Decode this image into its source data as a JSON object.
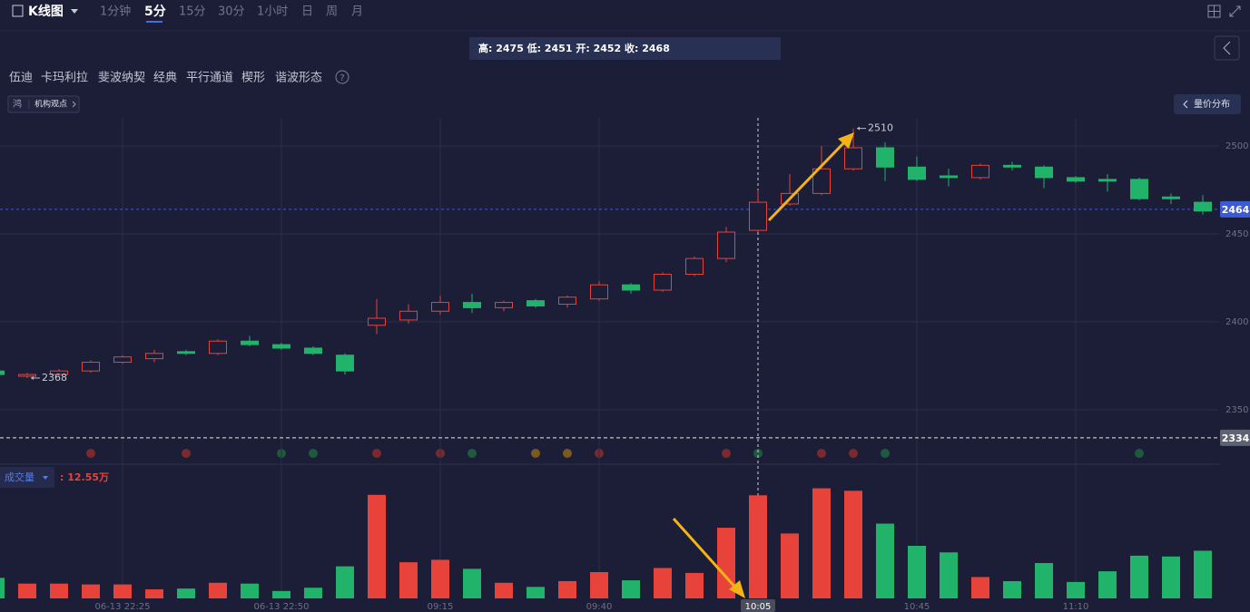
{
  "toolbar": {
    "chart_type": "K线图",
    "periods": [
      "1分钟",
      "5分",
      "15分",
      "30分",
      "1小时",
      "日",
      "周",
      "月"
    ],
    "active_period": 1
  },
  "tools": [
    "伍迪",
    "卡玛利拉",
    "斐波纳契",
    "经典",
    "平行通道",
    "楔形",
    "谐波形态"
  ],
  "help": "?",
  "badge": {
    "icon": "鸿",
    "label": "机构观点"
  },
  "side_button": "量价分布",
  "chart_data": {
    "type": "candlestick",
    "tooltip": "高: 2475 低: 2451 开: 2452 收: 2468",
    "categories": [
      null,
      null,
      null,
      null,
      "06-13 22:25",
      null,
      null,
      null,
      null,
      "06-13 22:50",
      null,
      null,
      null,
      null,
      "09:15",
      null,
      null,
      null,
      null,
      "09:40",
      null,
      null,
      null,
      null,
      "10:05",
      null,
      null,
      null,
      null,
      "10:45",
      null,
      null,
      null,
      null,
      "11:10",
      null,
      null,
      null,
      null
    ],
    "open": [
      2372,
      2369,
      2370,
      2372,
      2377,
      2379,
      2383,
      2382,
      2389,
      2387,
      2385,
      2381,
      2398,
      2401,
      2406,
      2411,
      2408,
      2412,
      2410,
      2413,
      2421,
      2418,
      2427,
      2436,
      2452,
      2467,
      2473,
      2487,
      2499,
      2488,
      2483,
      2482,
      2489,
      2488,
      2482,
      2481,
      2481,
      2471,
      2468
    ],
    "high": [
      2373,
      2371,
      2373,
      2378,
      2381,
      2384,
      2384,
      2390,
      2392,
      2388,
      2386,
      2382,
      2413,
      2410,
      2415,
      2416,
      2412,
      2413,
      2415,
      2423,
      2422,
      2428,
      2437,
      2454,
      2475,
      2484,
      2500,
      2510,
      2502,
      2494,
      2487,
      2490,
      2491,
      2489,
      2483,
      2484,
      2482,
      2473,
      2472
    ],
    "low": [
      2369,
      2368,
      2369,
      2371,
      2376,
      2377,
      2381,
      2381,
      2386,
      2384,
      2381,
      2370,
      2393,
      2399,
      2404,
      2405,
      2406,
      2408,
      2408,
      2412,
      2416,
      2417,
      2426,
      2434,
      2451,
      2466,
      2472,
      2486,
      2480,
      2480,
      2477,
      2481,
      2486,
      2476,
      2479,
      2474,
      2469,
      2467,
      2461
    ],
    "close": [
      2370,
      2370,
      2372,
      2377,
      2380,
      2382,
      2382,
      2389,
      2387,
      2385,
      2382,
      2372,
      2402,
      2406,
      2411,
      2408,
      2411,
      2409,
      2414,
      2421,
      2418,
      2427,
      2436,
      2451,
      2468,
      2473,
      2487,
      2499,
      2488,
      2481,
      2482,
      2489,
      2488,
      2482,
      2480,
      2480,
      2470,
      2470,
      2463
    ],
    "up_color": "#e8433a",
    "down_color": "#22b36b",
    "ylim": [
      2320,
      2516
    ],
    "yticks": [
      2350,
      2400,
      2450,
      2500
    ],
    "grid": true,
    "price_lines": [
      {
        "value": 2464,
        "color": "#3c5bd2"
      },
      {
        "value": 2334,
        "color": "#5f6272"
      }
    ],
    "extremes": [
      {
        "index": 27,
        "value": 2510
      },
      {
        "index": 1,
        "value": 2368
      }
    ],
    "crosshair_index": 24,
    "volume": {
      "name": "成交量",
      "values": [
        2.5,
        1.8,
        1.8,
        1.7,
        1.7,
        1.1,
        1.2,
        1.9,
        1.8,
        0.9,
        1.3,
        3.9,
        12.6,
        4.4,
        4.7,
        3.6,
        1.9,
        1.4,
        2.1,
        3.2,
        2.2,
        3.7,
        3.1,
        8.6,
        12.55,
        7.9,
        13.4,
        13.1,
        9.1,
        6.4,
        5.6,
        2.6,
        2.1,
        4.3,
        2.0,
        3.3,
        5.2,
        5.1,
        5.8
      ],
      "ylim": [
        0,
        16
      ],
      "value_label": ": 12.55万"
    }
  }
}
